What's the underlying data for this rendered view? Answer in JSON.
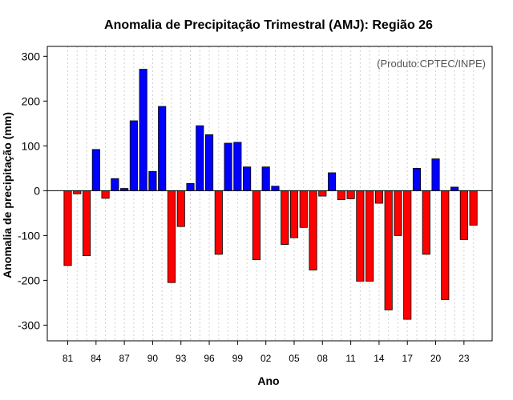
{
  "chart_data": {
    "type": "bar",
    "title": "Anomalia de Precipitação Trimestral (AMJ): Região 26",
    "xlabel": "Ano",
    "ylabel": "Anomalia de precipitação (mm)",
    "credit": "(Produto:CPTEC/INPE)",
    "ylim": [
      -335,
      322
    ],
    "yticks": [
      -300,
      -200,
      -100,
      0,
      100,
      200,
      300
    ],
    "ytick_labels": [
      "-300",
      "-200",
      "-100",
      "0",
      "100",
      "200",
      "300"
    ],
    "xtick_labels": [
      "81",
      "84",
      "87",
      "90",
      "93",
      "96",
      "99",
      "02",
      "05",
      "08",
      "11",
      "14",
      "17",
      "20",
      "23"
    ],
    "xtick_years": [
      1981,
      1984,
      1987,
      1990,
      1993,
      1996,
      1999,
      2002,
      2005,
      2008,
      2011,
      2014,
      2017,
      2020,
      2023
    ],
    "years": [
      1981,
      1982,
      1983,
      1984,
      1985,
      1986,
      1987,
      1988,
      1989,
      1990,
      1991,
      1992,
      1993,
      1994,
      1995,
      1996,
      1997,
      1998,
      1999,
      2000,
      2001,
      2002,
      2003,
      2004,
      2005,
      2006,
      2007,
      2008,
      2009,
      2010,
      2011,
      2012,
      2013,
      2014,
      2015,
      2016,
      2017,
      2018,
      2019,
      2020,
      2021,
      2022,
      2023,
      2024
    ],
    "values": [
      -167,
      -7,
      -145,
      92,
      -17,
      27,
      5,
      156,
      271,
      43,
      188,
      -205,
      -80,
      16,
      145,
      125,
      -142,
      106,
      108,
      53,
      -154,
      53,
      10,
      -120,
      -105,
      -82,
      -177,
      -12,
      40,
      -20,
      -18,
      -202,
      -202,
      -28,
      -266,
      -100,
      -287,
      50,
      -142,
      71,
      -243,
      8,
      -109,
      -77
    ],
    "colors": {
      "positive": "#0000ff",
      "negative": "#ff0000"
    },
    "grid": true
  }
}
